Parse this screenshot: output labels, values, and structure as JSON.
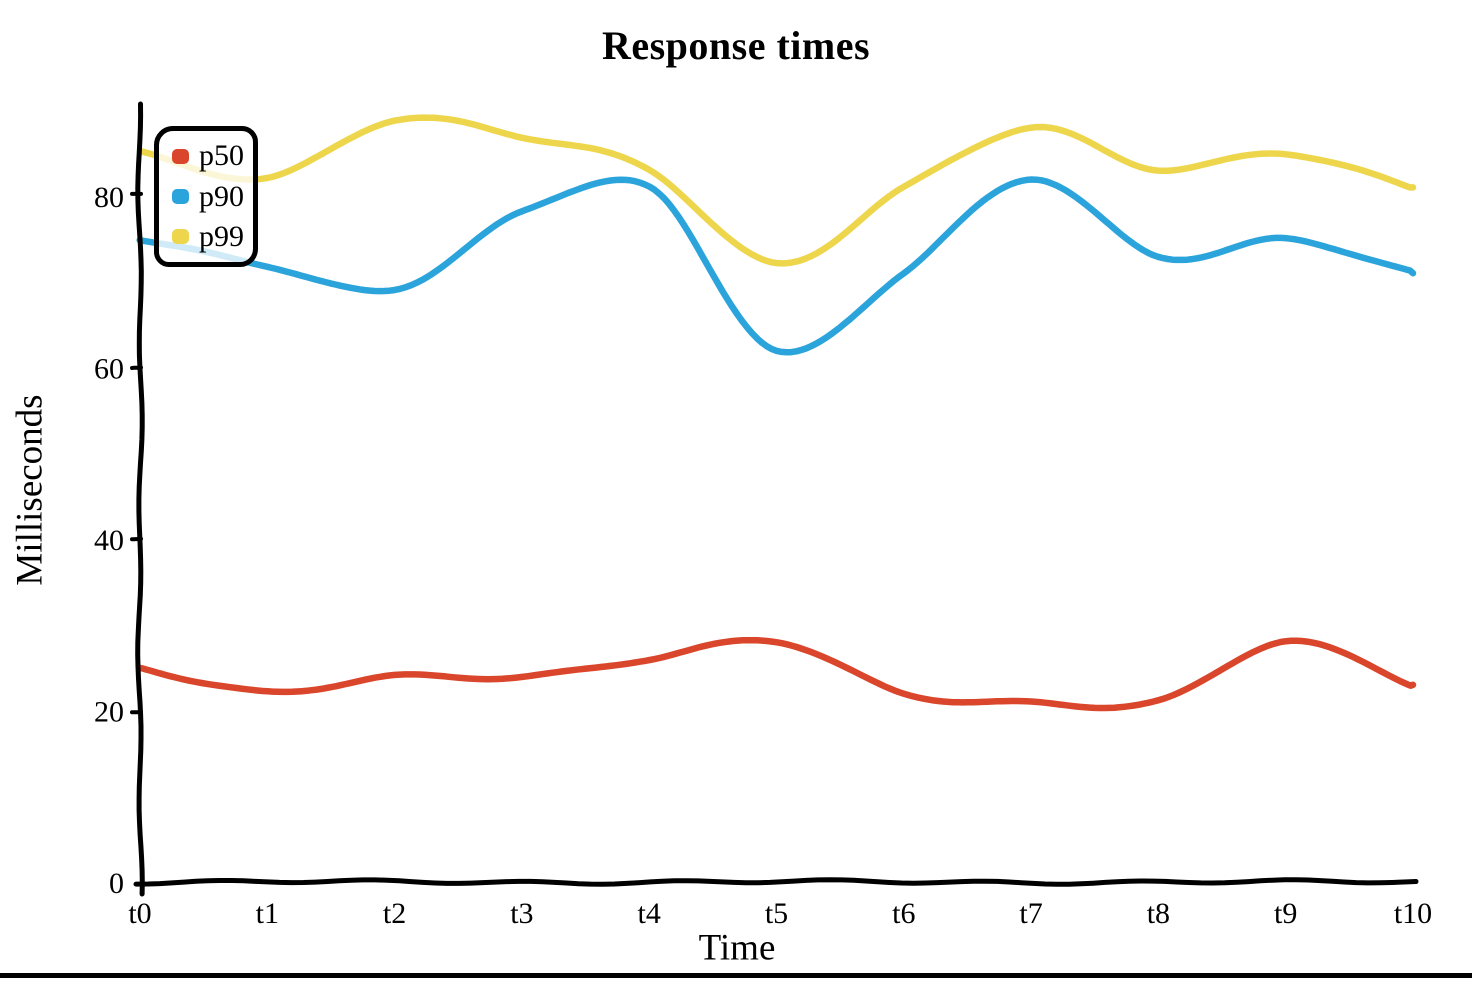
{
  "figure": {
    "title": "Response times",
    "background": "#ffffff",
    "bottom_rule_color": "#000000"
  },
  "chart_data": {
    "type": "line",
    "style": "hand-drawn-xkcd",
    "title": "Response times",
    "xlabel": "Time",
    "ylabel": "Milliseconds",
    "categories": [
      "t0",
      "t1",
      "t2",
      "t3",
      "t4",
      "t5",
      "t6",
      "t7",
      "t8",
      "t9",
      "t10"
    ],
    "yticks": [
      0,
      20,
      40,
      60,
      80
    ],
    "ylim": [
      0,
      90
    ],
    "grid": false,
    "axis_color": "#000000",
    "legend": {
      "position": "top-left",
      "entries": [
        "p50",
        "p90",
        "p99"
      ]
    },
    "series": [
      {
        "name": "p50",
        "color": "#d9462b",
        "values": [
          25,
          22,
          24,
          24,
          26,
          28,
          22,
          21,
          21,
          28,
          23
        ]
      },
      {
        "name": "p90",
        "color": "#2ba4db",
        "values": [
          75,
          72,
          69,
          78,
          81,
          62,
          71,
          82,
          73,
          75,
          71
        ]
      },
      {
        "name": "p99",
        "color": "#eed64c",
        "values": [
          85,
          82,
          89,
          87,
          83,
          72,
          81,
          88,
          83,
          85,
          81
        ]
      }
    ]
  }
}
